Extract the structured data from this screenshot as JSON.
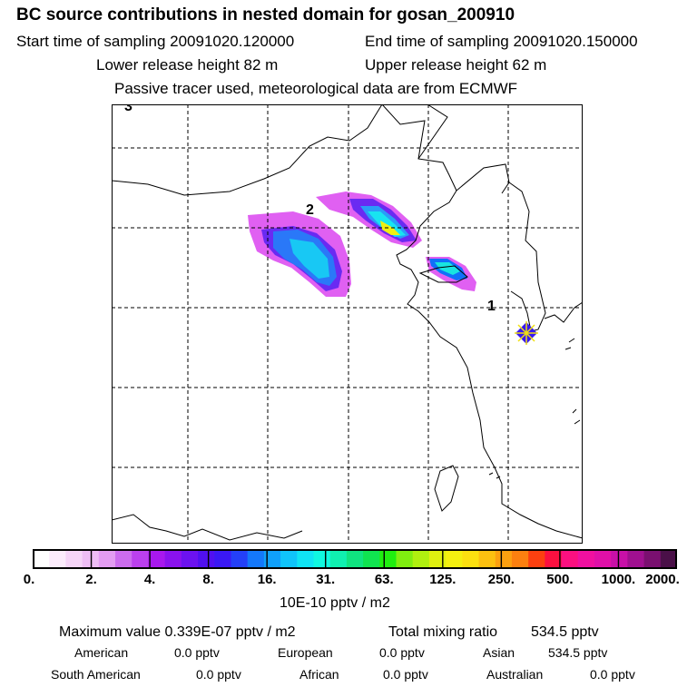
{
  "header": {
    "title": "BC  source contributions in nested domain for gosan_200910",
    "start": "Start time of sampling 20091020.120000",
    "end": "End time of sampling 20091020.150000",
    "lower": "Lower release height   82 m",
    "upper": "Upper release height   62 m",
    "note": "Passive tracer used, meteorological data are from ECMWF"
  },
  "map": {
    "labels": {
      "l3": "3",
      "l2": "2",
      "l1": "1"
    },
    "receptor": "gosan"
  },
  "colorbar": {
    "ticks": [
      "0.",
      "2.",
      "4.",
      "8.",
      "16.",
      "31.",
      "63.",
      "125.",
      "250.",
      "500.",
      "1000.",
      "2000."
    ],
    "unit": "10E-10 pptv / m2",
    "colors": [
      "#ffffff",
      "#fcecfc",
      "#f6d5f8",
      "#eebdf5",
      "#e39cf2",
      "#cc6cee",
      "#bb40ee",
      "#a818ee",
      "#8a12ee",
      "#6c12f0",
      "#5010f0",
      "#3a18f4",
      "#2440f8",
      "#1478fa",
      "#10a0fa",
      "#10c4fa",
      "#10e4f4",
      "#10f8e0",
      "#10f0b0",
      "#10e480",
      "#10e450",
      "#20ee10",
      "#80ee10",
      "#b0f010",
      "#e0f010",
      "#f4f010",
      "#fce010",
      "#fcc010",
      "#fca010",
      "#fc8010",
      "#fc4010",
      "#fc1040",
      "#fc1080",
      "#f010a0",
      "#e010a8",
      "#c810a8",
      "#a01090",
      "#7a1070",
      "#4a1048"
    ]
  },
  "stats": {
    "max_label": "Maximum value  0.339E-07 pptv / m2",
    "total_label": "Total mixing ratio",
    "total_value": "534.5 pptv",
    "american_label": "American",
    "american_value": "0.0 pptv",
    "european_label": "European",
    "european_value": "0.0 pptv",
    "asian_label": "Asian",
    "asian_value": "534.5 pptv",
    "samerican_label": "South American",
    "samerican_value": "0.0 pptv",
    "african_label": "African",
    "african_value": "0.0 pptv",
    "australian_label": "Australian",
    "australian_value": "0.0 pptv"
  }
}
